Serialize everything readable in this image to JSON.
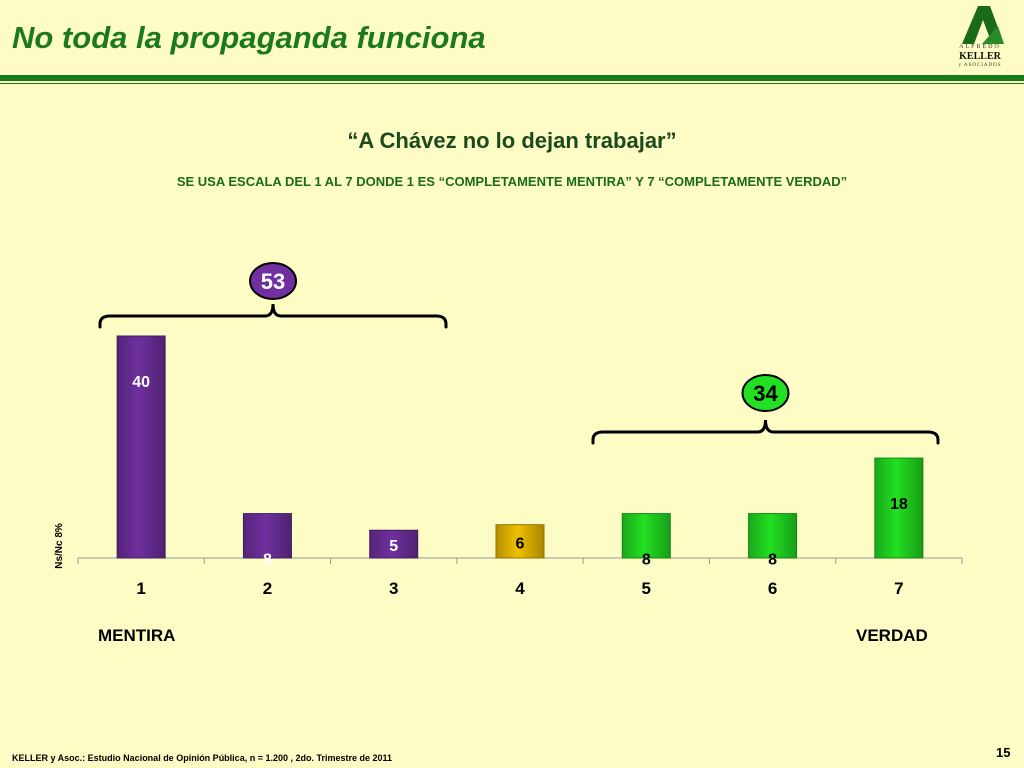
{
  "header": {
    "title": "No toda la propaganda funciona",
    "logo": {
      "line1": "ALFREDO",
      "line2": "KELLER",
      "line3": "y ASOCIADOS"
    }
  },
  "question": {
    "quote": "“A Chávez no lo dejan trabajar”",
    "scale_note": "SE USA ESCALA DEL 1 AL 7 DONDE 1 ES “COMPLETAMENTE MENTIRA” Y 7 “COMPLETAMENTE VERDAD”"
  },
  "scale_labels": {
    "left": "MENTIRA",
    "right": "VERDAD"
  },
  "footer": {
    "source": "KELLER y Asoc.: Estudio Nacional de Opinión Pública, n = 1.200 , 2do. Trimestre de 2011",
    "page": "15"
  },
  "chart_data": {
    "type": "bar",
    "categories": [
      "1",
      "2",
      "3",
      "4",
      "5",
      "6",
      "7"
    ],
    "values": [
      40,
      8,
      5,
      6,
      8,
      8,
      18
    ],
    "bar_colors": [
      "#7030a0",
      "#7030a0",
      "#7030a0",
      "#f0c000",
      "#22e022",
      "#22e022",
      "#22e022"
    ],
    "label_colors": [
      "#ffffff",
      "#ffffff",
      "#ffffff",
      "#000000",
      "#000000",
      "#000000",
      "#000000"
    ],
    "nsnc_label": "Ns/Nc  8%",
    "groups": [
      {
        "total": "53",
        "from": 0,
        "to": 2,
        "color": "#7030a0",
        "text_color": "#ffffff"
      },
      {
        "total": "34",
        "from": 4,
        "to": 6,
        "color": "#22e022",
        "text_color": "#000000"
      }
    ],
    "ylim": [
      0,
      40
    ]
  }
}
